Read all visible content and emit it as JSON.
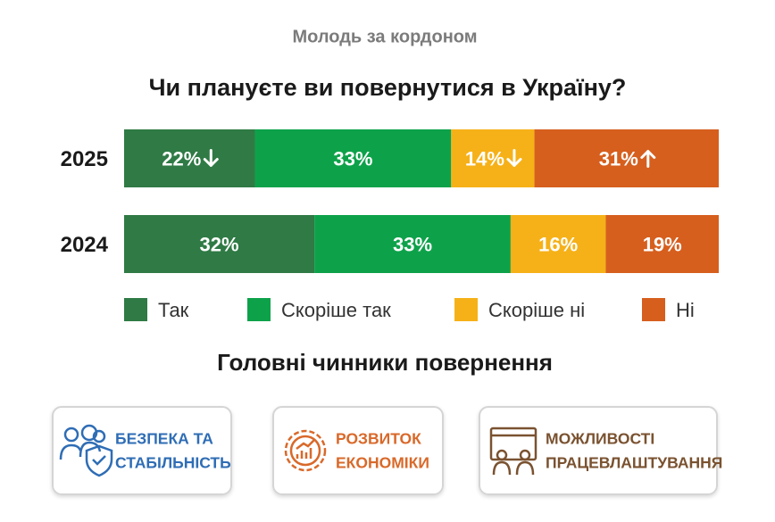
{
  "chart_data": {
    "type": "stacked-bar-horizontal",
    "supertitle": "Молодь за кордоном",
    "title": "Чи плануєте ви повернутися в Україну?",
    "categories": [
      "2025",
      "2024"
    ],
    "xlim": [
      0,
      100
    ],
    "legend": "bottom",
    "series": [
      {
        "name": "Так",
        "color": "#2f7a45",
        "values": [
          22,
          32
        ],
        "value_labels": [
          "22%",
          "32%"
        ],
        "trend": [
          "down",
          null
        ]
      },
      {
        "name": "Скоріше так",
        "color": "#0da24a",
        "values": [
          33,
          33
        ],
        "value_labels": [
          "33%",
          "33%"
        ],
        "trend": [
          null,
          null
        ]
      },
      {
        "name": "Скоріше ні",
        "color": "#f6b118",
        "values": [
          14,
          16
        ],
        "value_labels": [
          "14%",
          "16%"
        ],
        "trend": [
          "down",
          null
        ]
      },
      {
        "name": "Ні",
        "color": "#d65f1e",
        "values": [
          31,
          19
        ],
        "value_labels": [
          "31%",
          "19%"
        ],
        "trend": [
          "up",
          null
        ]
      }
    ]
  },
  "factors": {
    "title": "Головні чинники повернення",
    "items": [
      {
        "lines": [
          "БЕЗПЕКА ТА",
          "СТАБІЛЬНІСТЬ"
        ]
      },
      {
        "lines": [
          "РОЗВИТОК",
          "ЕКОНОМІКИ"
        ]
      },
      {
        "lines": [
          "МОЖЛИВОСТІ",
          "ПРАЦЕВЛАШТУВАННЯ"
        ]
      }
    ]
  }
}
